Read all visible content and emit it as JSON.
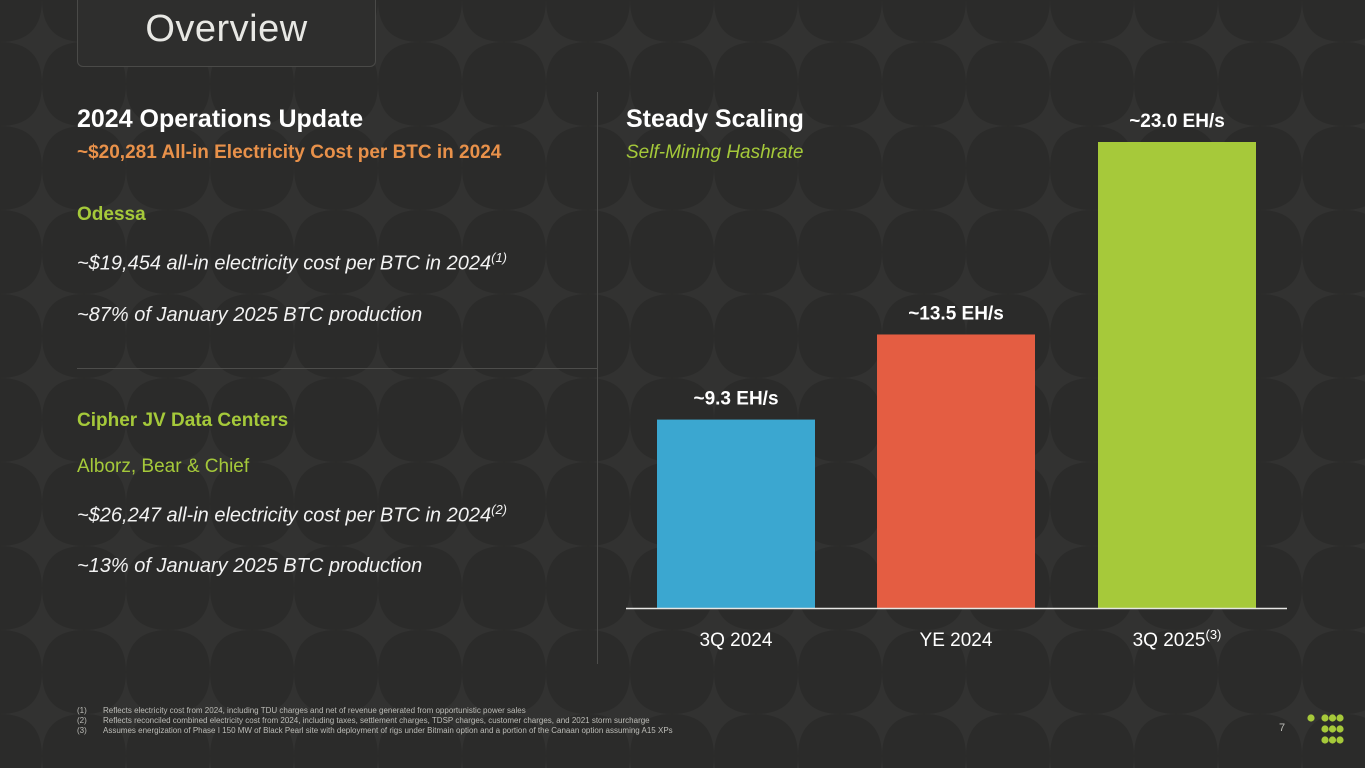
{
  "slide": {
    "title": "Overview",
    "page_number": "7"
  },
  "left": {
    "heading": "2024 Operations Update",
    "subheading": "~$20,281 All-in Electricity Cost per BTC in 2024",
    "odessa": {
      "title": "Odessa",
      "line1": "~$19,454 all-in electricity cost per BTC in 2024",
      "line1_note": "(1)",
      "line2": "~87% of January 2025 BTC production"
    },
    "cipher": {
      "title": "Cipher JV Data Centers",
      "sites": "Alborz, Bear & Chief",
      "line1": "~$26,247 all-in electricity cost per BTC in 2024",
      "line1_note": "(2)",
      "line2": "~13% of January 2025 BTC production"
    }
  },
  "right": {
    "heading": "Steady Scaling",
    "subheading": "Self-Mining Hashrate"
  },
  "chart_data": {
    "type": "bar",
    "title": "Steady Scaling",
    "subtitle": "Self-Mining Hashrate",
    "categories": [
      "3Q 2024",
      "YE 2024",
      "3Q 2025"
    ],
    "category_notes": [
      "",
      "",
      "(3)"
    ],
    "values": [
      9.3,
      13.5,
      23.0
    ],
    "unit": "EH/s",
    "data_labels": [
      "~9.3 EH/s",
      "~13.5 EH/s",
      "~23.0 EH/s"
    ],
    "colors": [
      "#3ba7d0",
      "#e45d42",
      "#a6c93a"
    ],
    "xlabel": "",
    "ylabel": "",
    "ylim": [
      0,
      23.0
    ],
    "grid": false,
    "legend": "none"
  },
  "footnotes": [
    {
      "num": "(1)",
      "text": "Reflects electricity cost from 2024, including TDU charges and net of revenue generated from opportunistic power sales"
    },
    {
      "num": "(2)",
      "text": "Reflects reconciled combined electricity cost from 2024, including taxes, settlement charges, TDSP charges, customer charges, and 2021 storm surcharge"
    },
    {
      "num": "(3)",
      "text": "Assumes energization of Phase I 150 MW of Black Pearl site with deployment of rigs under Bitmain option and a portion of the Canaan option assuming A15 XPs"
    }
  ],
  "colors": {
    "background": "#2b2b2a",
    "accent_orange": "#e8914a",
    "accent_green": "#a5c93a"
  }
}
